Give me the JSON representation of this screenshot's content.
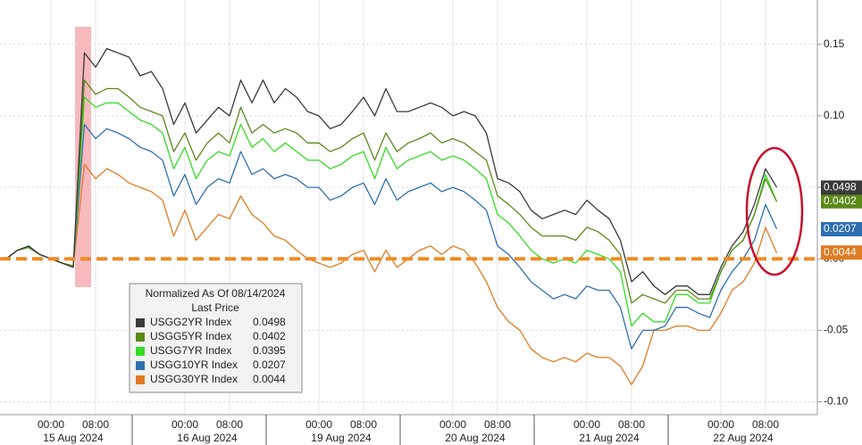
{
  "chart_data": {
    "type": "line",
    "legend_title": "Normalized As Of 08/14/2024",
    "legend_subtitle": "Last Price",
    "categories": [
      null,
      null,
      null,
      null,
      "00:00",
      null,
      null,
      null,
      "08:00",
      null,
      null,
      null,
      null,
      null,
      null,
      null,
      "00:00",
      null,
      null,
      null,
      "08:00",
      null,
      null,
      null,
      null,
      null,
      null,
      null,
      "00:00",
      null,
      null,
      null,
      "08:00",
      null,
      null,
      null,
      null,
      null,
      null,
      null,
      "00:00",
      null,
      null,
      null,
      "08:00",
      null,
      null,
      null,
      null,
      null,
      null,
      null,
      "00:00",
      null,
      null,
      null,
      "08:00",
      null,
      null,
      null,
      null,
      null,
      null,
      null,
      "00:00",
      null,
      null,
      null,
      "08:00",
      null
    ],
    "date_labels": [
      null,
      null,
      null,
      null,
      null,
      null,
      "15 Aug 2024",
      null,
      null,
      null,
      null,
      null,
      null,
      null,
      null,
      null,
      null,
      null,
      "16 Aug 2024",
      null,
      null,
      null,
      null,
      null,
      null,
      null,
      null,
      null,
      null,
      null,
      "19 Aug 2024",
      null,
      null,
      null,
      null,
      null,
      null,
      null,
      null,
      null,
      null,
      null,
      "20 Aug 2024",
      null,
      null,
      null,
      null,
      null,
      null,
      null,
      null,
      null,
      null,
      null,
      "21 Aug 2024",
      null,
      null,
      null,
      null,
      null,
      null,
      null,
      null,
      null,
      null,
      null,
      "22 Aug 2024",
      null,
      null,
      null
    ],
    "series": [
      {
        "name": "USGG30YR Index",
        "color": "#e07b24",
        "last_price": 0.0044,
        "show_tag": true,
        "values": [
          0,
          0.006,
          0.008,
          0.003,
          0,
          -0.003,
          -0.005,
          0.066,
          0.056,
          0.063,
          0.059,
          0.053,
          0.05,
          0.047,
          0.041,
          0.016,
          0.034,
          0.013,
          0.022,
          0.031,
          0.028,
          0.044,
          0.031,
          0.025,
          0.016,
          0.013,
          0.006,
          0,
          -0.003,
          -0.006,
          -0.003,
          0.003,
          0.006,
          -0.009,
          0.006,
          -0.006,
          0,
          0.006,
          0.009,
          0.003,
          0.009,
          0.006,
          -0.003,
          -0.016,
          -0.034,
          -0.044,
          -0.05,
          -0.063,
          -0.069,
          -0.072,
          -0.069,
          -0.072,
          -0.066,
          -0.069,
          -0.069,
          -0.075,
          -0.088,
          -0.075,
          -0.05,
          -0.05,
          -0.047,
          -0.047,
          -0.05,
          -0.05,
          -0.038,
          -0.022,
          -0.016,
          -0.003,
          0.022,
          0.004
        ]
      },
      {
        "name": "USGG10YR Index",
        "color": "#2f6fb0",
        "last_price": 0.0207,
        "show_tag": true,
        "values": [
          0,
          0.006,
          0.008,
          0.003,
          0,
          -0.003,
          -0.005,
          0.094,
          0.084,
          0.091,
          0.088,
          0.084,
          0.078,
          0.075,
          0.069,
          0.044,
          0.059,
          0.038,
          0.05,
          0.056,
          0.053,
          0.075,
          0.059,
          0.063,
          0.056,
          0.059,
          0.056,
          0.05,
          0.05,
          0.041,
          0.044,
          0.05,
          0.053,
          0.038,
          0.056,
          0.041,
          0.047,
          0.05,
          0.053,
          0.047,
          0.05,
          0.047,
          0.041,
          0.034,
          0.009,
          0.003,
          -0.006,
          -0.016,
          -0.022,
          -0.028,
          -0.025,
          -0.028,
          -0.019,
          -0.022,
          -0.022,
          -0.034,
          -0.063,
          -0.05,
          -0.05,
          -0.047,
          -0.034,
          -0.034,
          -0.038,
          -0.041,
          -0.022,
          -0.009,
          0,
          0.013,
          0.038,
          0.021
        ]
      },
      {
        "name": "USGG7YR Index",
        "color": "#33dd22",
        "last_price": 0.0395,
        "show_tag": false,
        "values": [
          0,
          0.006,
          0.008,
          0.003,
          0,
          -0.003,
          -0.005,
          0.113,
          0.106,
          0.109,
          0.109,
          0.103,
          0.097,
          0.094,
          0.088,
          0.063,
          0.078,
          0.056,
          0.069,
          0.075,
          0.072,
          0.094,
          0.078,
          0.084,
          0.075,
          0.081,
          0.075,
          0.069,
          0.069,
          0.063,
          0.066,
          0.072,
          0.075,
          0.056,
          0.078,
          0.063,
          0.069,
          0.072,
          0.075,
          0.069,
          0.072,
          0.069,
          0.063,
          0.056,
          0.031,
          0.025,
          0.016,
          0.006,
          0,
          -0.003,
          0,
          -0.003,
          0.006,
          0.003,
          0,
          -0.009,
          -0.047,
          -0.038,
          -0.044,
          -0.044,
          -0.025,
          -0.025,
          -0.031,
          -0.031,
          -0.009,
          0.006,
          0.013,
          0.031,
          0.059,
          0.04
        ]
      },
      {
        "name": "USGG5YR Index",
        "color": "#5a8a1a",
        "last_price": 0.0402,
        "show_tag": true,
        "values": [
          0,
          0.006,
          0.008,
          0.003,
          0,
          -0.003,
          -0.005,
          0.125,
          0.115,
          0.119,
          0.119,
          0.113,
          0.106,
          0.103,
          0.1,
          0.075,
          0.088,
          0.069,
          0.081,
          0.088,
          0.081,
          0.106,
          0.088,
          0.094,
          0.088,
          0.091,
          0.088,
          0.081,
          0.081,
          0.075,
          0.078,
          0.084,
          0.088,
          0.069,
          0.088,
          0.075,
          0.081,
          0.084,
          0.088,
          0.081,
          0.084,
          0.081,
          0.075,
          0.069,
          0.044,
          0.038,
          0.031,
          0.022,
          0.016,
          0.016,
          0.016,
          0.013,
          0.022,
          0.019,
          0.013,
          0.003,
          -0.031,
          -0.025,
          -0.028,
          -0.031,
          -0.022,
          -0.022,
          -0.028,
          -0.028,
          -0.009,
          0.006,
          0.013,
          0.031,
          0.056,
          0.04
        ]
      },
      {
        "name": "USGG2YR Index",
        "color": "#3a3a3a",
        "last_price": 0.0498,
        "show_tag": true,
        "values": [
          0,
          0.006,
          0.009,
          0.003,
          0,
          -0.003,
          -0.006,
          0.144,
          0.134,
          0.147,
          0.144,
          0.141,
          0.128,
          0.131,
          0.119,
          0.094,
          0.109,
          0.088,
          0.097,
          0.106,
          0.1,
          0.125,
          0.109,
          0.125,
          0.109,
          0.119,
          0.113,
          0.103,
          0.1,
          0.091,
          0.094,
          0.103,
          0.113,
          0.1,
          0.119,
          0.103,
          0.103,
          0.106,
          0.109,
          0.106,
          0.1,
          0.103,
          0.1,
          0.088,
          0.056,
          0.053,
          0.047,
          0.034,
          0.028,
          0.031,
          0.034,
          0.031,
          0.041,
          0.034,
          0.028,
          0.013,
          -0.016,
          -0.009,
          -0.019,
          -0.025,
          -0.019,
          -0.019,
          -0.025,
          -0.025,
          -0.006,
          0.009,
          0.019,
          0.038,
          0.063,
          0.05
        ]
      }
    ],
    "reference_line": 0,
    "reference_color": "#f08a20",
    "ylim": [
      -0.109,
      0.181
    ],
    "yticks": [
      {
        "value": -0.1,
        "label": "-0.10"
      },
      -0.05,
      {
        "value": 0,
        "label": "0.00"
      },
      0.05,
      {
        "value": 0.1,
        "label": "0.10"
      },
      0.15
    ],
    "grid": true
  }
}
